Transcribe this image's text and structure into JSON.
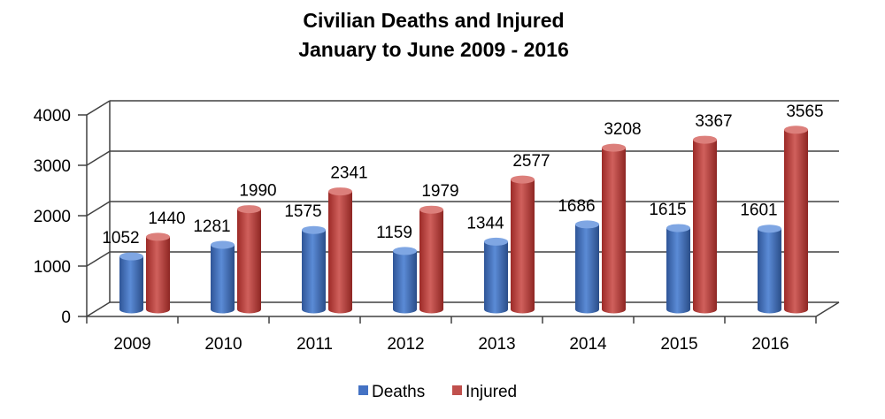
{
  "chart_data": {
    "type": "bar",
    "style": "3d-cylinder",
    "title": "Civilian Deaths and Injured",
    "subtitle": "January to June 2009 - 2016",
    "categories": [
      "2009",
      "2010",
      "2011",
      "2012",
      "2013",
      "2014",
      "2015",
      "2016"
    ],
    "series": [
      {
        "name": "Deaths",
        "color": "#4472C4",
        "values": [
          1052,
          1281,
          1575,
          1159,
          1344,
          1686,
          1615,
          1601
        ]
      },
      {
        "name": "Injured",
        "color": "#C0504D",
        "values": [
          1440,
          1990,
          2341,
          1979,
          2577,
          3208,
          3367,
          3565
        ]
      }
    ],
    "ylim": [
      0,
      4000
    ],
    "yticks": [
      "0",
      "1000",
      "2000",
      "3000",
      "4000"
    ],
    "grid": true,
    "legend_position": "bottom",
    "xlabel": "",
    "ylabel": ""
  }
}
